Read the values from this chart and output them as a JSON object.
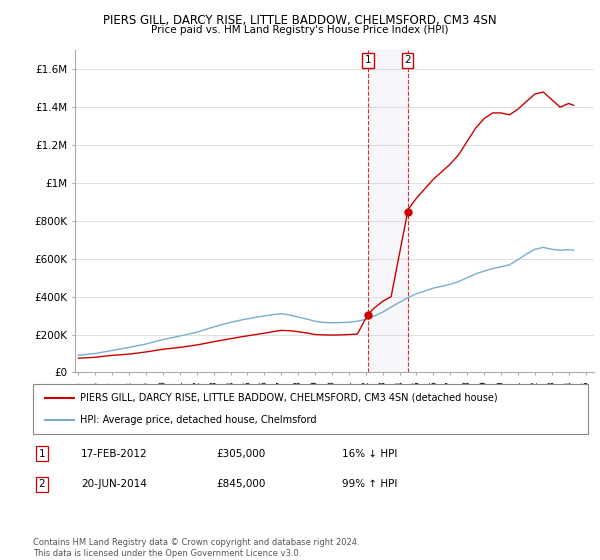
{
  "title": "PIERS GILL, DARCY RISE, LITTLE BADDOW, CHELMSFORD, CM3 4SN",
  "subtitle": "Price paid vs. HM Land Registry's House Price Index (HPI)",
  "legend_line1": "PIERS GILL, DARCY RISE, LITTLE BADDOW, CHELMSFORD, CM3 4SN (detached house)",
  "legend_line2": "HPI: Average price, detached house, Chelmsford",
  "footer1": "Contains HM Land Registry data © Crown copyright and database right 2024.",
  "footer2": "This data is licensed under the Open Government Licence v3.0.",
  "transaction1_date": "17-FEB-2012",
  "transaction1_price": "£305,000",
  "transaction1_hpi": "16% ↓ HPI",
  "transaction2_date": "20-JUN-2014",
  "transaction2_price": "£845,000",
  "transaction2_hpi": "99% ↑ HPI",
  "ylim": [
    0,
    1700000
  ],
  "yticks": [
    0,
    200000,
    400000,
    600000,
    800000,
    1000000,
    1200000,
    1400000,
    1600000
  ],
  "ytick_labels": [
    "£0",
    "£200K",
    "£400K",
    "£600K",
    "£800K",
    "£1M",
    "£1.2M",
    "£1.4M",
    "£1.6M"
  ],
  "red_line_color": "#cc0000",
  "blue_line_color": "#7aadcc",
  "background_color": "#ffffff",
  "plot_bg_color": "#ffffff",
  "grid_color": "#e0e0e0",
  "transaction1_x": 2012.12,
  "transaction2_x": 2014.47,
  "red_line_x": [
    1995,
    1995.5,
    1996,
    1996.5,
    1997,
    1997.5,
    1998,
    1998.5,
    1999,
    1999.5,
    2000,
    2000.5,
    2001,
    2001.5,
    2002,
    2002.5,
    2003,
    2003.5,
    2004,
    2004.5,
    2005,
    2005.5,
    2006,
    2006.5,
    2007,
    2007.5,
    2008,
    2008.5,
    2009,
    2009.5,
    2010,
    2010.5,
    2011,
    2011.5,
    2012.12,
    2012.5,
    2013,
    2013.5,
    2014.47,
    2014.5,
    2015,
    2015.5,
    2016,
    2016.5,
    2017,
    2017.5,
    2018,
    2018.5,
    2019,
    2019.5,
    2020,
    2020.5,
    2021,
    2021.5,
    2022,
    2022.5,
    2023,
    2023.5,
    2024,
    2024.3
  ],
  "red_line_y": [
    75000,
    77000,
    80000,
    85000,
    90000,
    93000,
    97000,
    102000,
    108000,
    115000,
    122000,
    127000,
    132000,
    138000,
    145000,
    153000,
    162000,
    170000,
    178000,
    186000,
    193000,
    200000,
    207000,
    215000,
    222000,
    220000,
    215000,
    208000,
    200000,
    198000,
    197000,
    198000,
    200000,
    202000,
    305000,
    340000,
    375000,
    400000,
    845000,
    860000,
    920000,
    970000,
    1020000,
    1060000,
    1100000,
    1150000,
    1220000,
    1290000,
    1340000,
    1370000,
    1370000,
    1360000,
    1390000,
    1430000,
    1470000,
    1480000,
    1440000,
    1400000,
    1420000,
    1410000
  ],
  "blue_line_x": [
    1995,
    1995.5,
    1996,
    1996.5,
    1997,
    1997.5,
    1998,
    1998.5,
    1999,
    1999.5,
    2000,
    2000.5,
    2001,
    2001.5,
    2002,
    2002.5,
    2003,
    2003.5,
    2004,
    2004.5,
    2005,
    2005.5,
    2006,
    2006.5,
    2007,
    2007.5,
    2008,
    2008.5,
    2009,
    2009.5,
    2010,
    2010.5,
    2011,
    2011.5,
    2012,
    2012.5,
    2013,
    2013.5,
    2014,
    2014.5,
    2015,
    2015.5,
    2016,
    2016.5,
    2017,
    2017.5,
    2018,
    2018.5,
    2019,
    2019.5,
    2020,
    2020.5,
    2021,
    2021.5,
    2022,
    2022.5,
    2023,
    2023.5,
    2024,
    2024.3
  ],
  "blue_line_y": [
    90000,
    95000,
    100000,
    108000,
    116000,
    124000,
    132000,
    141000,
    150000,
    162000,
    173000,
    183000,
    192000,
    202000,
    212000,
    226000,
    240000,
    252000,
    264000,
    274000,
    283000,
    291000,
    298000,
    305000,
    310000,
    303000,
    292000,
    282000,
    270000,
    264000,
    262000,
    263000,
    265000,
    270000,
    280000,
    298000,
    318000,
    345000,
    370000,
    395000,
    415000,
    430000,
    445000,
    455000,
    465000,
    480000,
    500000,
    520000,
    535000,
    548000,
    558000,
    568000,
    595000,
    625000,
    650000,
    660000,
    650000,
    645000,
    648000,
    645000
  ]
}
